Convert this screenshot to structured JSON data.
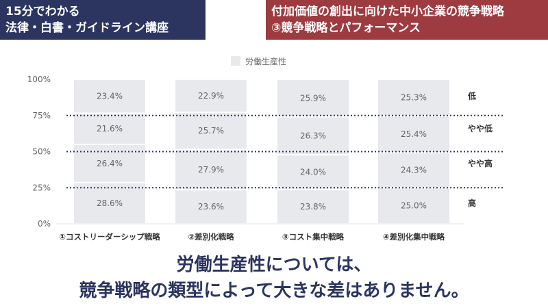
{
  "header": {
    "left_line1": "15分でわかる",
    "left_line2": "法律・白書・ガイドライン講座",
    "right_line1": "付加価値の創出に向けた中小企業の競争戦略",
    "right_line2": "③競争戦略とパフォーマンス",
    "left_color": "#2c3560",
    "right_color": "#9e3b40"
  },
  "chart_data": {
    "type": "bar",
    "stacked": true,
    "legend": {
      "label": "労働生産性",
      "position": "top-center"
    },
    "categories": [
      "①コストリーダーシップ戦略",
      "②差別化戦略",
      "③コスト集中戦略",
      "④差別化集中戦略"
    ],
    "series": [
      {
        "name": "高",
        "values": [
          28.6,
          23.6,
          23.8,
          25.0
        ]
      },
      {
        "name": "やや高",
        "values": [
          26.4,
          27.9,
          24.0,
          24.3
        ]
      },
      {
        "name": "やや低",
        "values": [
          21.6,
          25.7,
          26.3,
          25.4
        ]
      },
      {
        "name": "低",
        "values": [
          23.4,
          22.9,
          25.9,
          25.3
        ]
      }
    ],
    "data_labels": {
      "高": [
        "28.6%",
        "23.6%",
        "23.8%",
        "25.0%"
      ],
      "やや高": [
        "26.4%",
        "27.9%",
        "24.0%",
        "24.3%"
      ],
      "やや低": [
        "21.6%",
        "25.7%",
        "26.3%",
        "25.4%"
      ],
      "低": [
        "23.4%",
        "22.9%",
        "25.9%",
        "25.3%"
      ]
    },
    "ylim": [
      0,
      100
    ],
    "yticks": [
      0,
      25,
      50,
      75,
      100
    ],
    "ytick_labels": [
      "0%",
      "25%",
      "50%",
      "75%",
      "100%"
    ],
    "reference_lines": [
      25,
      50,
      75
    ],
    "bar_color": "#e8e9ed",
    "grid": false
  },
  "conclusion": {
    "line1": "労働生産性については、",
    "line2": "競争戦略の類型によって大きな差はありません。"
  }
}
